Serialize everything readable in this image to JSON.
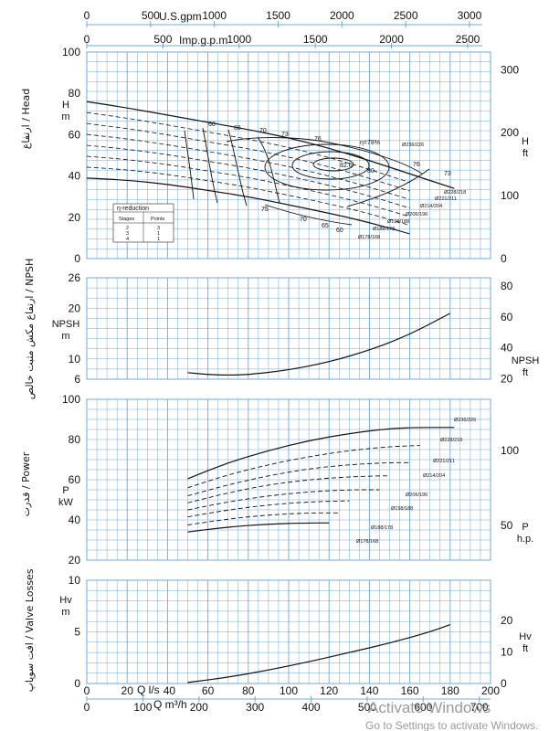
{
  "colors": {
    "grid": "#6fa8d8",
    "ink": "#111111",
    "watermark": "#9a9a9a"
  },
  "top_axes": {
    "us_gpm": {
      "unit": "U.S.gpm",
      "ticks": [
        "0",
        "500",
        "1000",
        "1500",
        "2000",
        "2500",
        "3000"
      ]
    },
    "imp_gpm": {
      "unit": "Imp.g.p.m",
      "ticks": [
        "0",
        "500",
        "1000",
        "1500",
        "2000",
        "2500"
      ]
    }
  },
  "bottom_axes": {
    "ls": {
      "unit": "Q l/s",
      "ticks": [
        "0",
        "20",
        "40",
        "60",
        "80",
        "100",
        "120",
        "140",
        "160",
        "180",
        "200"
      ]
    },
    "m3h": {
      "unit": "Q m³/h",
      "ticks": [
        "0",
        "100",
        "200",
        "300",
        "400",
        "500",
        "600",
        "700"
      ]
    }
  },
  "head_panel": {
    "title": "ارتفاع / Head",
    "left_unit": "H\nm",
    "right_unit": "H\nft",
    "left_ticks": [
      "0",
      "20",
      "40",
      "60",
      "80",
      "100"
    ],
    "right_ticks": [
      "0",
      "100",
      "200",
      "300"
    ]
  },
  "npsh_panel": {
    "title": "ارتفاع مکش مثبت خالص / NPSH",
    "left_unit": "NPSH\nm",
    "right_unit": "NPSH\nft",
    "left_ticks": [
      "6",
      "10",
      "20",
      "26"
    ],
    "right_ticks": [
      "20",
      "40",
      "60",
      "80"
    ]
  },
  "power_panel": {
    "title": "قدرت / Power",
    "left_unit": "P\nkW",
    "right_unit": "P\nh.p.",
    "left_ticks": [
      "20",
      "40",
      "60",
      "80",
      "100"
    ],
    "right_ticks": [
      "50",
      "100"
    ]
  },
  "valve_panel": {
    "title": "افت سوپاپ / Valve Losses",
    "left_unit": "Hv\nm",
    "right_unit": "Hv\nft",
    "left_ticks": [
      "0",
      "5",
      "10"
    ],
    "right_ticks": [
      "0",
      "10",
      "20"
    ]
  },
  "eta_reduction_table": {
    "title": "η-reduction",
    "headers": [
      "Stages",
      "Points"
    ],
    "rows": [
      [
        "2",
        "3"
      ],
      [
        "3",
        "1"
      ],
      [
        "4",
        "1"
      ]
    ]
  },
  "efficiency_labels": [
    "60",
    "65",
    "70",
    "73",
    "76",
    "η=78%",
    "80",
    "82.6",
    "76",
    "73",
    "75",
    "70",
    "65",
    "60"
  ],
  "impeller_labels": [
    "Ø236/226",
    "Ø228/218",
    "Ø221/211",
    "Ø214/204",
    "Ø206/196",
    "Ø198/188",
    "Ø188/178",
    "Ø178/168"
  ],
  "watermark": {
    "line1": "Activate Windows",
    "line2": "Go to Settings to activate Windows."
  },
  "chart_data": [
    {
      "type": "line",
      "title": "Head",
      "xlabel": "Q l/s",
      "ylabel": "H m",
      "xlim": [
        0,
        200
      ],
      "ylim": [
        0,
        100
      ],
      "grid": true,
      "series": [
        {
          "name": "Ø236/226",
          "x": [
            0,
            20,
            40,
            60,
            80,
            100,
            120,
            140,
            160,
            182
          ],
          "values": [
            76,
            73,
            69.5,
            66,
            62.5,
            58.5,
            53.5,
            47.5,
            41,
            34
          ]
        },
        {
          "name": "Ø178/168",
          "x": [
            0,
            20,
            40,
            60,
            80,
            100,
            120,
            140,
            160
          ],
          "values": [
            39,
            38,
            36,
            33,
            30,
            26,
            22,
            17.5,
            12
          ]
        }
      ]
    },
    {
      "type": "line",
      "title": "NPSH",
      "xlabel": "Q l/s",
      "ylabel": "NPSH m",
      "xlim": [
        0,
        200
      ],
      "ylim": [
        6,
        26
      ],
      "grid": true,
      "series": [
        {
          "x": [
            50,
            60,
            70,
            80,
            100,
            120,
            140,
            160,
            180
          ],
          "values": [
            7.3,
            6.9,
            6.8,
            6.9,
            7.8,
            9.4,
            11.7,
            14.8,
            19
          ]
        }
      ]
    },
    {
      "type": "line",
      "title": "Power",
      "xlabel": "Q l/s",
      "ylabel": "P kW",
      "xlim": [
        0,
        200
      ],
      "ylim": [
        20,
        100
      ],
      "grid": true,
      "series": [
        {
          "name": "Ø236/226",
          "x": [
            50,
            70,
            90,
            110,
            130,
            150,
            165,
            182
          ],
          "values": [
            60.5,
            68.5,
            74.5,
            79.5,
            83,
            85.5,
            86,
            86
          ]
        },
        {
          "name": "Ø228/218",
          "x": [
            50,
            70,
            90,
            110,
            130,
            150,
            165
          ],
          "values": [
            56,
            62.5,
            67.5,
            71.5,
            74.5,
            76.5,
            77
          ]
        },
        {
          "name": "Ø221/211",
          "x": [
            50,
            70,
            90,
            110,
            130,
            150,
            160
          ],
          "values": [
            52,
            57.5,
            62,
            65.5,
            67.5,
            68.5,
            68.5
          ]
        },
        {
          "name": "Ø214/204",
          "x": [
            50,
            70,
            90,
            110,
            130,
            150
          ],
          "values": [
            48.5,
            53.5,
            57.5,
            60,
            61.5,
            62
          ]
        },
        {
          "name": "Ø206/196",
          "x": [
            50,
            70,
            90,
            110,
            130,
            145
          ],
          "values": [
            45,
            49,
            52,
            54,
            55,
            55
          ]
        },
        {
          "name": "Ø198/188",
          "x": [
            50,
            70,
            90,
            110,
            130
          ],
          "values": [
            41.5,
            45,
            47.5,
            49,
            49.5
          ]
        },
        {
          "name": "Ø188/178",
          "x": [
            50,
            70,
            90,
            110,
            125
          ],
          "values": [
            37.5,
            40.5,
            42.5,
            43.5,
            43.5
          ]
        },
        {
          "name": "Ø178/168",
          "x": [
            50,
            70,
            90,
            110,
            120
          ],
          "values": [
            34,
            36.5,
            38,
            38.5,
            38.5
          ]
        }
      ]
    },
    {
      "type": "line",
      "title": "Valve Losses",
      "xlabel": "Q l/s",
      "ylabel": "Hv m",
      "xlim": [
        0,
        200
      ],
      "ylim": [
        0,
        10
      ],
      "grid": true,
      "series": [
        {
          "x": [
            50,
            70,
            90,
            110,
            130,
            150,
            170,
            180
          ],
          "values": [
            0.1,
            0.6,
            1.3,
            2.1,
            3,
            3.9,
            5,
            5.7
          ]
        }
      ]
    }
  ]
}
